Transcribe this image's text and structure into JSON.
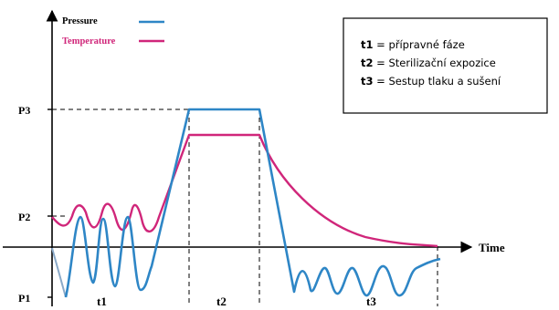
{
  "legend": {
    "pressure_label": "Pressure",
    "temperature_label": "Temperature",
    "pressure_color": "#2e86c6",
    "temperature_color": "#d0267a"
  },
  "info_box": {
    "items": [
      {
        "key": "t1",
        "text": " = přípravné fáze"
      },
      {
        "key": "t2",
        "text": " = Sterilizační expozice"
      },
      {
        "key": "t3",
        "text": " = Sestup tlaku a sušení"
      }
    ]
  },
  "axes": {
    "x_label": "Time",
    "y_ticks": [
      "P3",
      "P2",
      "P1"
    ]
  },
  "phases": [
    "t1",
    "t2",
    "t3"
  ]
}
